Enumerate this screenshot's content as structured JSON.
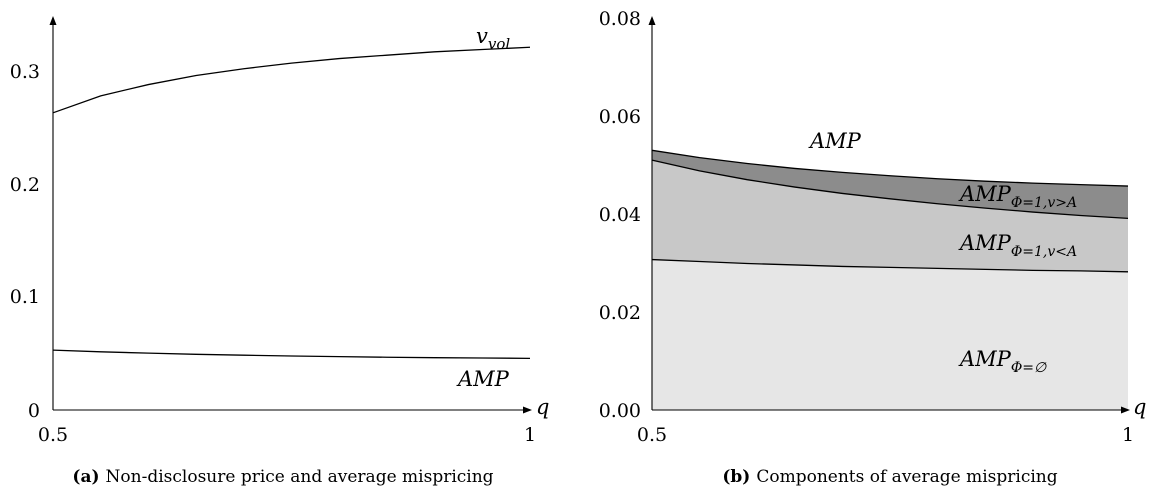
{
  "chart_data": [
    {
      "type": "line",
      "caption_tag": "(a)",
      "caption_text": "Non-disclosure price and average mispricing",
      "xlabel": "q",
      "ylabel": "",
      "xlim": [
        0.5,
        1
      ],
      "ylim": [
        0,
        0.34
      ],
      "x_ticks": [
        "0.5",
        "1"
      ],
      "y_ticks": [
        "0",
        "0.1",
        "0.2",
        "0.3"
      ],
      "grid": false,
      "series": [
        {
          "label_base": "v",
          "label_sub": "vol",
          "x": [
            0.5,
            0.55,
            0.6,
            0.65,
            0.7,
            0.75,
            0.8,
            0.85,
            0.9,
            0.95,
            1.0
          ],
          "y": [
            0.263,
            0.278,
            0.288,
            0.296,
            0.302,
            0.307,
            0.311,
            0.314,
            0.317,
            0.319,
            0.321
          ]
        },
        {
          "label_base": "AMP",
          "label_sub": "",
          "x": [
            0.5,
            0.55,
            0.6,
            0.65,
            0.7,
            0.75,
            0.8,
            0.85,
            0.9,
            0.95,
            1.0
          ],
          "y": [
            0.053,
            0.0515,
            0.0503,
            0.0493,
            0.0485,
            0.0478,
            0.0472,
            0.0467,
            0.0463,
            0.046,
            0.0457
          ]
        }
      ]
    },
    {
      "type": "area",
      "caption_tag": "(b)",
      "caption_text": "Components of average mispricing",
      "xlabel": "q",
      "ylabel": "",
      "xlim": [
        0.5,
        1
      ],
      "ylim": [
        0,
        0.08
      ],
      "x_ticks": [
        "0.5",
        "1"
      ],
      "y_ticks": [
        "0.00",
        "0.02",
        "0.04",
        "0.06",
        "0.08"
      ],
      "grid": false,
      "x": [
        0.5,
        0.55,
        0.6,
        0.65,
        0.7,
        0.75,
        0.8,
        0.85,
        0.9,
        0.95,
        1.0
      ],
      "series": [
        {
          "label_base": "AMP",
          "label_sub": "",
          "color": "#8c8c8c",
          "y": [
            0.053,
            0.0515,
            0.0503,
            0.0493,
            0.0485,
            0.0478,
            0.0472,
            0.0467,
            0.0463,
            0.046,
            0.0457
          ]
        },
        {
          "label_base": "AMP",
          "label_sub": "Φ=1,v>A",
          "color": "#8c8c8c",
          "y": [
            0.053,
            0.0515,
            0.0503,
            0.0493,
            0.0485,
            0.0478,
            0.0472,
            0.0467,
            0.0463,
            0.046,
            0.0457
          ]
        },
        {
          "label_base": "AMP",
          "label_sub": "Φ=1,v<A",
          "color": "#c8c8c8",
          "y": [
            0.051,
            0.0488,
            0.047,
            0.0455,
            0.0442,
            0.0431,
            0.0421,
            0.0412,
            0.0404,
            0.0397,
            0.0391
          ]
        },
        {
          "label_base": "AMP",
          "label_sub": "Φ=∅",
          "color": "#e6e6e6",
          "y": [
            0.0307,
            0.0303,
            0.0299,
            0.0296,
            0.0293,
            0.0291,
            0.0289,
            0.0287,
            0.0285,
            0.0284,
            0.0282
          ]
        }
      ]
    }
  ]
}
